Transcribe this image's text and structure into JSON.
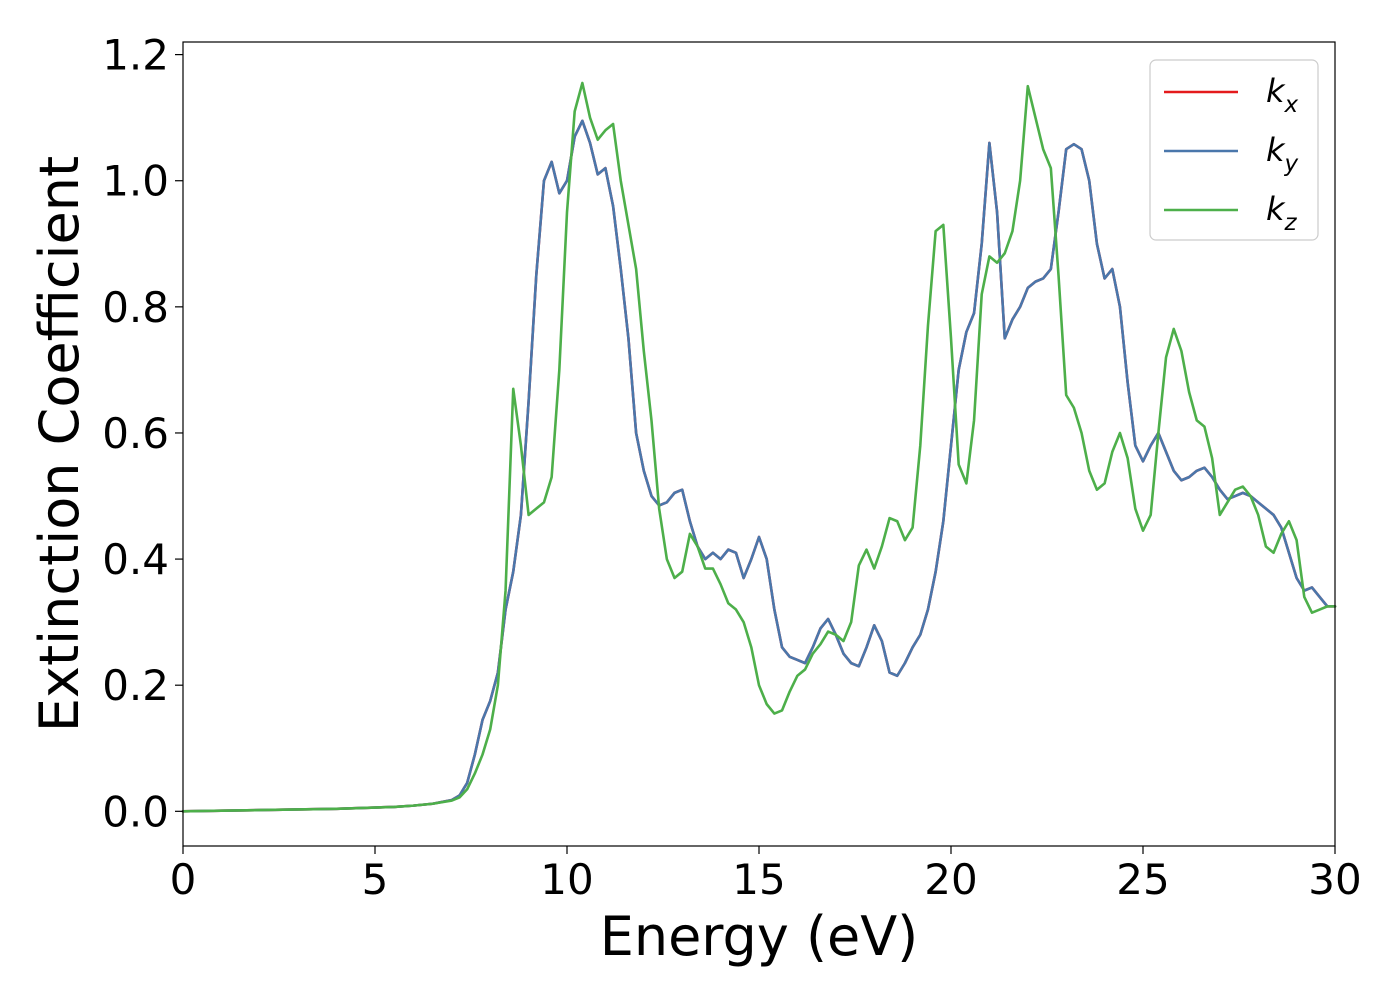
{
  "chart_data": {
    "type": "line",
    "title": "",
    "xlabel": "Energy (eV)",
    "ylabel": "Extinction Coefficient",
    "xlim": [
      0,
      30
    ],
    "ylim": [
      -0.055,
      1.22
    ],
    "xticks": [
      0,
      5,
      10,
      15,
      20,
      25,
      30
    ],
    "xtick_labels": [
      "0",
      "5",
      "10",
      "15",
      "20",
      "25",
      "30"
    ],
    "yticks": [
      0.0,
      0.2,
      0.4,
      0.6,
      0.8,
      1.0,
      1.2
    ],
    "ytick_labels": [
      "0.0",
      "0.2",
      "0.4",
      "0.6",
      "0.8",
      "1.0",
      "1.2"
    ],
    "grid": false,
    "legend_position": "top-right",
    "series": [
      {
        "name": "k_x",
        "label_base": "k",
        "label_sub": "x",
        "color": "#e41a1c",
        "x": [
          0,
          1,
          2,
          3,
          4,
          5,
          5.5,
          6,
          6.5,
          7,
          7.2,
          7.4,
          7.6,
          7.8,
          8.0,
          8.2,
          8.4,
          8.6,
          8.8,
          9.0,
          9.2,
          9.4,
          9.6,
          9.8,
          10.0,
          10.2,
          10.4,
          10.6,
          10.8,
          11.0,
          11.2,
          11.4,
          11.6,
          11.8,
          12.0,
          12.2,
          12.4,
          12.6,
          12.8,
          13.0,
          13.2,
          13.4,
          13.6,
          13.8,
          14.0,
          14.2,
          14.4,
          14.6,
          14.8,
          15.0,
          15.2,
          15.4,
          15.6,
          15.8,
          16.0,
          16.2,
          16.4,
          16.6,
          16.8,
          17.0,
          17.2,
          17.4,
          17.6,
          17.8,
          18.0,
          18.2,
          18.4,
          18.6,
          18.8,
          19.0,
          19.2,
          19.4,
          19.6,
          19.8,
          20.0,
          20.2,
          20.4,
          20.6,
          20.8,
          21.0,
          21.2,
          21.4,
          21.6,
          21.8,
          22.0,
          22.2,
          22.4,
          22.6,
          22.8,
          23.0,
          23.2,
          23.4,
          23.6,
          23.8,
          24.0,
          24.2,
          24.4,
          24.6,
          24.8,
          25.0,
          25.2,
          25.4,
          25.6,
          25.8,
          26.0,
          26.2,
          26.4,
          26.6,
          26.8,
          27.0,
          27.2,
          27.4,
          27.6,
          27.8,
          28.0,
          28.2,
          28.4,
          28.6,
          28.8,
          29.0,
          29.2,
          29.4,
          29.6,
          29.8,
          30.0
        ],
        "y": [
          0.0,
          0.001,
          0.002,
          0.003,
          0.004,
          0.006,
          0.007,
          0.009,
          0.012,
          0.018,
          0.025,
          0.045,
          0.09,
          0.145,
          0.175,
          0.22,
          0.32,
          0.38,
          0.47,
          0.65,
          0.85,
          1.0,
          1.03,
          0.98,
          1.0,
          1.07,
          1.095,
          1.06,
          1.01,
          1.02,
          0.96,
          0.86,
          0.75,
          0.6,
          0.54,
          0.5,
          0.485,
          0.49,
          0.505,
          0.51,
          0.46,
          0.42,
          0.4,
          0.41,
          0.4,
          0.415,
          0.41,
          0.37,
          0.4,
          0.435,
          0.4,
          0.32,
          0.26,
          0.245,
          0.24,
          0.235,
          0.26,
          0.29,
          0.305,
          0.28,
          0.25,
          0.235,
          0.23,
          0.26,
          0.295,
          0.27,
          0.22,
          0.215,
          0.235,
          0.26,
          0.28,
          0.32,
          0.38,
          0.46,
          0.58,
          0.7,
          0.76,
          0.79,
          0.9,
          1.06,
          0.95,
          0.75,
          0.78,
          0.8,
          0.83,
          0.84,
          0.845,
          0.86,
          0.95,
          1.05,
          1.058,
          1.05,
          1.0,
          0.9,
          0.845,
          0.86,
          0.8,
          0.68,
          0.58,
          0.555,
          0.58,
          0.6,
          0.57,
          0.54,
          0.525,
          0.53,
          0.54,
          0.545,
          0.53,
          0.51,
          0.495,
          0.5,
          0.505,
          0.5,
          0.49,
          0.48,
          0.47,
          0.45,
          0.41,
          0.37,
          0.35,
          0.355,
          0.34,
          0.325,
          0.325
        ]
      },
      {
        "name": "k_y",
        "label_base": "k",
        "label_sub": "y",
        "color": "#4a77ab",
        "x": [
          0,
          1,
          2,
          3,
          4,
          5,
          5.5,
          6,
          6.5,
          7,
          7.2,
          7.4,
          7.6,
          7.8,
          8.0,
          8.2,
          8.4,
          8.6,
          8.8,
          9.0,
          9.2,
          9.4,
          9.6,
          9.8,
          10.0,
          10.2,
          10.4,
          10.6,
          10.8,
          11.0,
          11.2,
          11.4,
          11.6,
          11.8,
          12.0,
          12.2,
          12.4,
          12.6,
          12.8,
          13.0,
          13.2,
          13.4,
          13.6,
          13.8,
          14.0,
          14.2,
          14.4,
          14.6,
          14.8,
          15.0,
          15.2,
          15.4,
          15.6,
          15.8,
          16.0,
          16.2,
          16.4,
          16.6,
          16.8,
          17.0,
          17.2,
          17.4,
          17.6,
          17.8,
          18.0,
          18.2,
          18.4,
          18.6,
          18.8,
          19.0,
          19.2,
          19.4,
          19.6,
          19.8,
          20.0,
          20.2,
          20.4,
          20.6,
          20.8,
          21.0,
          21.2,
          21.4,
          21.6,
          21.8,
          22.0,
          22.2,
          22.4,
          22.6,
          22.8,
          23.0,
          23.2,
          23.4,
          23.6,
          23.8,
          24.0,
          24.2,
          24.4,
          24.6,
          24.8,
          25.0,
          25.2,
          25.4,
          25.6,
          25.8,
          26.0,
          26.2,
          26.4,
          26.6,
          26.8,
          27.0,
          27.2,
          27.4,
          27.6,
          27.8,
          28.0,
          28.2,
          28.4,
          28.6,
          28.8,
          29.0,
          29.2,
          29.4,
          29.6,
          29.8,
          30.0
        ],
        "y": [
          0.0,
          0.001,
          0.002,
          0.003,
          0.004,
          0.006,
          0.007,
          0.009,
          0.012,
          0.018,
          0.025,
          0.045,
          0.09,
          0.145,
          0.175,
          0.22,
          0.32,
          0.38,
          0.47,
          0.65,
          0.85,
          1.0,
          1.03,
          0.98,
          1.0,
          1.07,
          1.095,
          1.06,
          1.01,
          1.02,
          0.96,
          0.86,
          0.75,
          0.6,
          0.54,
          0.5,
          0.485,
          0.49,
          0.505,
          0.51,
          0.46,
          0.42,
          0.4,
          0.41,
          0.4,
          0.415,
          0.41,
          0.37,
          0.4,
          0.435,
          0.4,
          0.32,
          0.26,
          0.245,
          0.24,
          0.235,
          0.26,
          0.29,
          0.305,
          0.28,
          0.25,
          0.235,
          0.23,
          0.26,
          0.295,
          0.27,
          0.22,
          0.215,
          0.235,
          0.26,
          0.28,
          0.32,
          0.38,
          0.46,
          0.58,
          0.7,
          0.76,
          0.79,
          0.9,
          1.06,
          0.95,
          0.75,
          0.78,
          0.8,
          0.83,
          0.84,
          0.845,
          0.86,
          0.95,
          1.05,
          1.058,
          1.05,
          1.0,
          0.9,
          0.845,
          0.86,
          0.8,
          0.68,
          0.58,
          0.555,
          0.58,
          0.6,
          0.57,
          0.54,
          0.525,
          0.53,
          0.54,
          0.545,
          0.53,
          0.51,
          0.495,
          0.5,
          0.505,
          0.5,
          0.49,
          0.48,
          0.47,
          0.45,
          0.41,
          0.37,
          0.35,
          0.355,
          0.34,
          0.325,
          0.325
        ]
      },
      {
        "name": "k_z",
        "label_base": "k",
        "label_sub": "z",
        "color": "#4daf4a",
        "x": [
          0,
          1,
          2,
          3,
          4,
          5,
          5.5,
          6,
          6.5,
          7,
          7.2,
          7.4,
          7.6,
          7.8,
          8.0,
          8.2,
          8.4,
          8.6,
          8.8,
          9.0,
          9.2,
          9.4,
          9.6,
          9.8,
          10.0,
          10.2,
          10.4,
          10.6,
          10.8,
          11.0,
          11.2,
          11.4,
          11.6,
          11.8,
          12.0,
          12.2,
          12.4,
          12.6,
          12.8,
          13.0,
          13.2,
          13.4,
          13.6,
          13.8,
          14.0,
          14.2,
          14.4,
          14.6,
          14.8,
          15.0,
          15.2,
          15.4,
          15.6,
          15.8,
          16.0,
          16.2,
          16.4,
          16.6,
          16.8,
          17.0,
          17.2,
          17.4,
          17.6,
          17.8,
          18.0,
          18.2,
          18.4,
          18.6,
          18.8,
          19.0,
          19.2,
          19.4,
          19.6,
          19.8,
          20.0,
          20.2,
          20.4,
          20.6,
          20.8,
          21.0,
          21.2,
          21.4,
          21.6,
          21.8,
          22.0,
          22.2,
          22.4,
          22.6,
          22.8,
          23.0,
          23.2,
          23.4,
          23.6,
          23.8,
          24.0,
          24.2,
          24.4,
          24.6,
          24.8,
          25.0,
          25.2,
          25.4,
          25.6,
          25.8,
          26.0,
          26.2,
          26.4,
          26.6,
          26.8,
          27.0,
          27.2,
          27.4,
          27.6,
          27.8,
          28.0,
          28.2,
          28.4,
          28.6,
          28.8,
          29.0,
          29.2,
          29.4,
          29.6,
          29.8,
          30.0
        ],
        "y": [
          0.0,
          0.001,
          0.002,
          0.003,
          0.004,
          0.006,
          0.007,
          0.009,
          0.012,
          0.017,
          0.022,
          0.035,
          0.06,
          0.09,
          0.13,
          0.2,
          0.35,
          0.67,
          0.58,
          0.47,
          0.48,
          0.49,
          0.53,
          0.7,
          0.95,
          1.11,
          1.155,
          1.1,
          1.065,
          1.08,
          1.09,
          1.0,
          0.93,
          0.86,
          0.73,
          0.62,
          0.48,
          0.4,
          0.37,
          0.38,
          0.44,
          0.42,
          0.385,
          0.385,
          0.36,
          0.33,
          0.32,
          0.3,
          0.26,
          0.2,
          0.17,
          0.155,
          0.16,
          0.19,
          0.215,
          0.225,
          0.25,
          0.265,
          0.285,
          0.28,
          0.27,
          0.3,
          0.39,
          0.415,
          0.385,
          0.42,
          0.465,
          0.46,
          0.43,
          0.45,
          0.58,
          0.77,
          0.92,
          0.93,
          0.75,
          0.55,
          0.52,
          0.62,
          0.82,
          0.88,
          0.87,
          0.885,
          0.92,
          1.0,
          1.15,
          1.1,
          1.05,
          1.02,
          0.85,
          0.66,
          0.64,
          0.6,
          0.54,
          0.51,
          0.52,
          0.57,
          0.6,
          0.56,
          0.48,
          0.445,
          0.47,
          0.6,
          0.72,
          0.765,
          0.73,
          0.665,
          0.62,
          0.61,
          0.56,
          0.47,
          0.49,
          0.51,
          0.515,
          0.5,
          0.47,
          0.42,
          0.41,
          0.44,
          0.46,
          0.43,
          0.34,
          0.315,
          0.32,
          0.325,
          0.325
        ]
      }
    ]
  }
}
